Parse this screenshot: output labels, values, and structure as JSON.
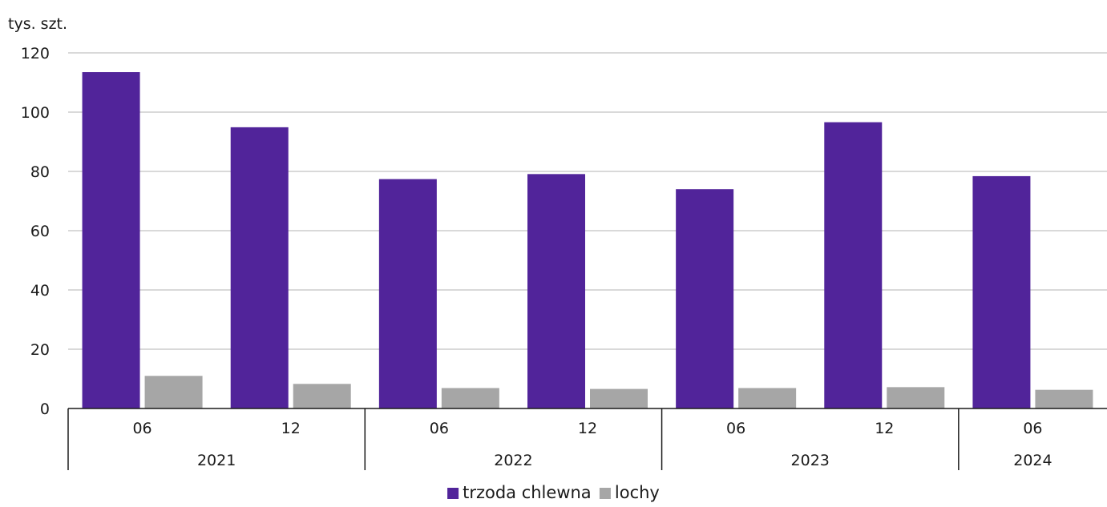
{
  "chart_data": {
    "type": "bar",
    "ylabel": "tys. szt.",
    "ylim": [
      0,
      120
    ],
    "yticks": [
      0,
      20,
      40,
      60,
      80,
      100,
      120
    ],
    "grid": true,
    "legend_position": "bottom-center",
    "categories": [
      "06",
      "12",
      "06",
      "12",
      "06",
      "12",
      "06"
    ],
    "groups": [
      {
        "label": "2021",
        "start": 0,
        "count": 2
      },
      {
        "label": "2022",
        "start": 2,
        "count": 2
      },
      {
        "label": "2023",
        "start": 4,
        "count": 2
      },
      {
        "label": "2024",
        "start": 6,
        "count": 1
      }
    ],
    "series": [
      {
        "name": "trzoda chlewna",
        "color": "#51249a",
        "values": [
          113.5,
          94.9,
          77.4,
          79.1,
          74.0,
          96.6,
          78.4
        ]
      },
      {
        "name": "lochy",
        "color": "#a6a6a6",
        "values": [
          11.0,
          8.3,
          6.9,
          6.6,
          6.9,
          7.2,
          6.3
        ]
      }
    ],
    "gridline_color": "#d9d9d9",
    "axis_color": "#1a1a1a"
  }
}
